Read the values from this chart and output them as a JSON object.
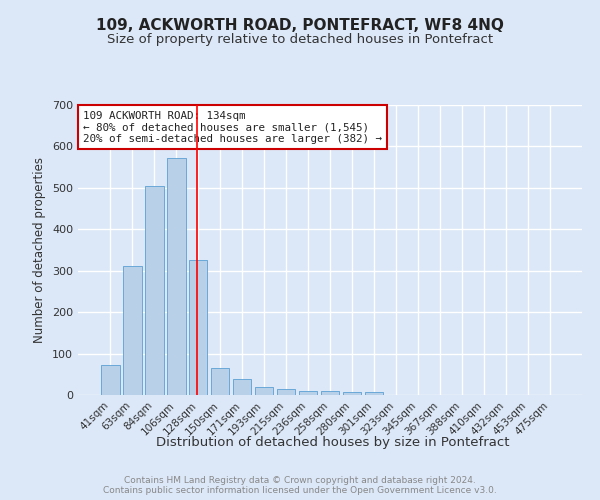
{
  "title": "109, ACKWORTH ROAD, PONTEFRACT, WF8 4NQ",
  "subtitle": "Size of property relative to detached houses in Pontefract",
  "xlabel": "Distribution of detached houses by size in Pontefract",
  "ylabel": "Number of detached properties",
  "categories": [
    "41sqm",
    "63sqm",
    "84sqm",
    "106sqm",
    "128sqm",
    "150sqm",
    "171sqm",
    "193sqm",
    "215sqm",
    "236sqm",
    "258sqm",
    "280sqm",
    "301sqm",
    "323sqm",
    "345sqm",
    "367sqm",
    "388sqm",
    "410sqm",
    "432sqm",
    "453sqm",
    "475sqm"
  ],
  "values": [
    72,
    311,
    505,
    572,
    325,
    65,
    38,
    20,
    15,
    10,
    10,
    7,
    7,
    0,
    0,
    0,
    0,
    0,
    0,
    0,
    0
  ],
  "bar_color": "#b8d0e8",
  "bar_edge_color": "#5a9fd4",
  "annotation_text": "109 ACKWORTH ROAD: 134sqm\n← 80% of detached houses are smaller (1,545)\n20% of semi-detached houses are larger (382) →",
  "annotation_box_edge_color": "#cc0000",
  "vline_pos": 3.93,
  "ylim": [
    0,
    700
  ],
  "yticks": [
    0,
    100,
    200,
    300,
    400,
    500,
    600,
    700
  ],
  "footer_text": "Contains HM Land Registry data © Crown copyright and database right 2024.\nContains public sector information licensed under the Open Government Licence v3.0.",
  "bg_color": "#dce8f8",
  "plot_bg_color": "#dce8f8",
  "grid_color": "#ffffff",
  "title_fontsize": 11,
  "subtitle_fontsize": 9.5,
  "xlabel_fontsize": 9.5,
  "ylabel_fontsize": 8.5,
  "tick_fontsize": 7.5,
  "footer_fontsize": 6.5
}
